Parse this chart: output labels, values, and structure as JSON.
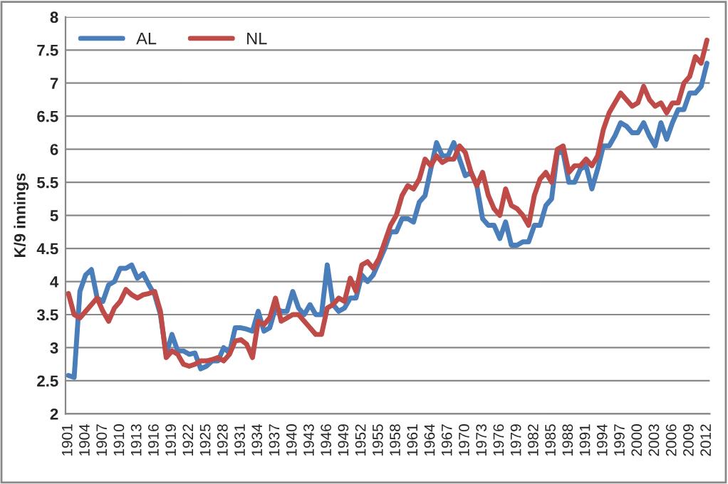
{
  "chart_data": {
    "type": "line",
    "ylabel": "K/9 innings",
    "categories": [
      "1901",
      null,
      null,
      "1904",
      null,
      null,
      "1907",
      null,
      null,
      "1910",
      null,
      null,
      "1913",
      null,
      null,
      "1916",
      null,
      null,
      "1919",
      null,
      null,
      "1922",
      null,
      null,
      "1925",
      null,
      null,
      "1928",
      null,
      null,
      "1931",
      null,
      null,
      "1934",
      null,
      null,
      "1937",
      null,
      null,
      "1940",
      null,
      null,
      "1943",
      null,
      null,
      "1946",
      null,
      null,
      "1949",
      null,
      null,
      "1952",
      null,
      null,
      "1955",
      null,
      null,
      "1958",
      null,
      null,
      "1961",
      null,
      null,
      "1964",
      null,
      null,
      "1967",
      null,
      null,
      "1970",
      null,
      null,
      "1973",
      null,
      null,
      "1976",
      null,
      null,
      "1979",
      null,
      null,
      "1982",
      null,
      null,
      "1985",
      null,
      null,
      "1988",
      null,
      null,
      "1991",
      null,
      null,
      "1994",
      null,
      null,
      "1997",
      null,
      null,
      "2000",
      null,
      null,
      "2003",
      null,
      null,
      "2006",
      null,
      null,
      "2009",
      null,
      null,
      "2012"
    ],
    "series": [
      {
        "name": "AL",
        "color": "#4a7ebb",
        "values": [
          2.58,
          2.55,
          3.85,
          4.1,
          4.18,
          3.75,
          3.7,
          3.95,
          4.0,
          4.2,
          4.2,
          4.25,
          4.05,
          4.12,
          3.95,
          3.8,
          3.5,
          2.9,
          3.2,
          2.95,
          2.95,
          2.9,
          2.92,
          2.68,
          2.72,
          2.8,
          2.8,
          3.0,
          2.92,
          3.3,
          3.3,
          3.28,
          3.25,
          3.55,
          3.25,
          3.3,
          3.6,
          3.55,
          3.55,
          3.85,
          3.6,
          3.5,
          3.65,
          3.5,
          3.5,
          4.25,
          3.65,
          3.55,
          3.6,
          3.75,
          3.75,
          4.1,
          4.0,
          4.1,
          4.3,
          4.5,
          4.75,
          4.75,
          4.95,
          4.95,
          4.9,
          5.2,
          5.3,
          5.7,
          6.1,
          5.9,
          5.9,
          6.1,
          5.85,
          5.6,
          5.65,
          5.45,
          4.95,
          4.85,
          4.85,
          4.65,
          4.9,
          4.55,
          4.55,
          4.6,
          4.6,
          4.85,
          4.85,
          5.15,
          5.25,
          5.95,
          5.95,
          5.5,
          5.5,
          5.7,
          5.75,
          5.4,
          5.7,
          6.05,
          6.05,
          6.2,
          6.4,
          6.35,
          6.25,
          6.25,
          6.4,
          6.2,
          6.05,
          6.4,
          6.15,
          6.4,
          6.6,
          6.6,
          6.85,
          6.85,
          6.95,
          7.3
        ]
      },
      {
        "name": "NL",
        "color": "#be4b48",
        "values": [
          3.82,
          3.5,
          3.45,
          3.55,
          3.65,
          3.75,
          3.55,
          3.4,
          3.6,
          3.7,
          3.88,
          3.8,
          3.75,
          3.8,
          3.82,
          3.85,
          3.55,
          2.85,
          2.95,
          2.9,
          2.75,
          2.72,
          2.75,
          2.8,
          2.8,
          2.82,
          2.85,
          2.8,
          2.9,
          3.1,
          3.12,
          3.05,
          2.85,
          3.4,
          3.35,
          3.45,
          3.75,
          3.4,
          3.45,
          3.5,
          3.5,
          3.4,
          3.3,
          3.2,
          3.2,
          3.6,
          3.65,
          3.75,
          3.7,
          4.05,
          3.85,
          4.25,
          4.3,
          4.2,
          4.35,
          4.6,
          4.85,
          5.0,
          5.3,
          5.45,
          5.4,
          5.55,
          5.85,
          5.75,
          5.9,
          5.8,
          5.85,
          5.85,
          6.05,
          5.95,
          5.65,
          5.45,
          5.65,
          5.3,
          5.1,
          5.0,
          5.4,
          5.15,
          5.1,
          5.0,
          4.85,
          5.3,
          5.55,
          5.65,
          5.5,
          6.0,
          6.05,
          5.65,
          5.75,
          5.75,
          5.85,
          5.75,
          5.9,
          6.3,
          6.55,
          6.7,
          6.85,
          6.75,
          6.65,
          6.7,
          6.95,
          6.75,
          6.65,
          6.7,
          6.55,
          6.7,
          6.7,
          7.0,
          7.1,
          7.4,
          7.3,
          7.65
        ]
      }
    ],
    "ylim": [
      2,
      8
    ],
    "yticks": [
      2,
      2.5,
      3,
      3.5,
      4,
      4.5,
      5,
      5.5,
      6,
      6.5,
      7,
      7.5,
      8
    ],
    "grid": "y",
    "legend": "top left",
    "marker": "none",
    "line_style": "solid"
  }
}
